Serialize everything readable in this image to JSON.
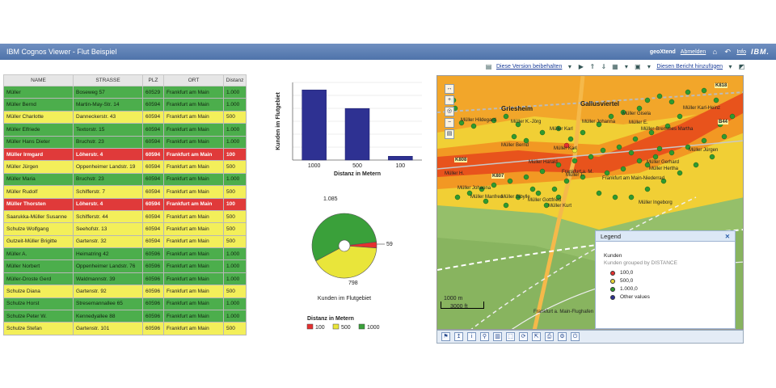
{
  "app": {
    "title": "IBM Cognos Viewer - Flut Beispiel",
    "user": "geoXtend",
    "logout": "Abmelden",
    "info": "Info",
    "brand": "IBM."
  },
  "toolbar": {
    "keep_version": "Diese Version beibehalten",
    "add_report": "Diesen Bericht hinzufügen"
  },
  "table": {
    "headers": [
      "NAME",
      "STRASSE",
      "PLZ",
      "ORT",
      "Distanz"
    ],
    "rows": [
      {
        "name": "Müller",
        "street": "Boseweg 57",
        "plz": "60529",
        "ort": "Frankfurt am Main",
        "dist": "1.000",
        "cls": "g"
      },
      {
        "name": "Müller Bernd",
        "street": "Martin-May-Str. 14",
        "plz": "60594",
        "ort": "Frankfurt am Main",
        "dist": "1.000",
        "cls": "g"
      },
      {
        "name": "Müller Charlotte",
        "street": "Danneckerstr. 43",
        "plz": "60594",
        "ort": "Frankfurt am Main",
        "dist": "500",
        "cls": "y"
      },
      {
        "name": "Müller Elfriede",
        "street": "Textorstr. 15",
        "plz": "60594",
        "ort": "Frankfurt am Main",
        "dist": "1.000",
        "cls": "g"
      },
      {
        "name": "Müller Hans Dieter",
        "street": "Bruchstr. 23",
        "plz": "60594",
        "ort": "Frankfurt am Main",
        "dist": "1.000",
        "cls": "g"
      },
      {
        "name": "Müller Irmgard",
        "street": "Löherstr. 4",
        "plz": "60594",
        "ort": "Frankfurt am Main",
        "dist": "100",
        "cls": "r"
      },
      {
        "name": "Müller Jürgen",
        "street": "Oppenheimer Landstr. 19",
        "plz": "60594",
        "ort": "Frankfurt am Main",
        "dist": "500",
        "cls": "y"
      },
      {
        "name": "Müller Maria",
        "street": "Bruchstr. 23",
        "plz": "60594",
        "ort": "Frankfurt am Main",
        "dist": "1.000",
        "cls": "g"
      },
      {
        "name": "Müller Rudolf",
        "street": "Schifferstr. 7",
        "plz": "60594",
        "ort": "Frankfurt am Main",
        "dist": "500",
        "cls": "y"
      },
      {
        "name": "Müller Thorsten",
        "street": "Löherstr. 4",
        "plz": "60594",
        "ort": "Frankfurt am Main",
        "dist": "100",
        "cls": "r"
      },
      {
        "name": "Saarukka-Müller Susanne",
        "street": "Schifferstr. 44",
        "plz": "60594",
        "ort": "Frankfurt am Main",
        "dist": "500",
        "cls": "y"
      },
      {
        "name": "Schulze Wolfgang",
        "street": "Seehofstr. 13",
        "plz": "60594",
        "ort": "Frankfurt am Main",
        "dist": "500",
        "cls": "y"
      },
      {
        "name": "Gutzeit-Müller Brigitte",
        "street": "Gartenstr. 32",
        "plz": "60594",
        "ort": "Frankfurt am Main",
        "dist": "500",
        "cls": "y"
      },
      {
        "name": "Müller A.",
        "street": "Heimatring 42",
        "plz": "60596",
        "ort": "Frankfurt am Main",
        "dist": "1.000",
        "cls": "g"
      },
      {
        "name": "Müller Norbert",
        "street": "Oppenheimer Landstr. 76",
        "plz": "60596",
        "ort": "Frankfurt am Main",
        "dist": "1.000",
        "cls": "g"
      },
      {
        "name": "Müller-Droste Gerd",
        "street": "Waldmannstr. 39",
        "plz": "60596",
        "ort": "Frankfurt am Main",
        "dist": "1.000",
        "cls": "g"
      },
      {
        "name": "Schulze Diana",
        "street": "Gartenstr. 92",
        "plz": "60596",
        "ort": "Frankfurt am Main",
        "dist": "500",
        "cls": "y"
      },
      {
        "name": "Schulze Horst",
        "street": "Stresemannallee 65",
        "plz": "60596",
        "ort": "Frankfurt am Main",
        "dist": "1.000",
        "cls": "g"
      },
      {
        "name": "Schulze Peter W.",
        "street": "Kennedyallee 88",
        "plz": "60596",
        "ort": "Frankfurt am Main",
        "dist": "1.000",
        "cls": "g"
      },
      {
        "name": "Schulze Stefan",
        "street": "Gartenstr. 101",
        "plz": "60596",
        "ort": "Frankfurt am Main",
        "dist": "500",
        "cls": "y"
      }
    ]
  },
  "chart_data": [
    {
      "type": "bar",
      "categories": [
        "1000",
        "500",
        "100"
      ],
      "values": [
        1085,
        798,
        59
      ],
      "xlabel": "Distanz in Metern",
      "ylabel": "Kunden im Flutgebiet",
      "ylim": [
        0,
        1200
      ],
      "color": "#2e3192",
      "grid": true
    },
    {
      "type": "pie",
      "title": "Kunden im Flutgebiet",
      "legend_title": "Distanz in Metern",
      "slices": [
        {
          "label": "100",
          "value": 59,
          "color": "#e53030"
        },
        {
          "label": "500",
          "value": 798,
          "color": "#e9e53a"
        },
        {
          "label": "1000",
          "value": 1085,
          "color": "#3aa03a"
        }
      ],
      "data_labels": [
        "1.085",
        "59",
        "798"
      ]
    }
  ],
  "map": {
    "labels": [
      "Griesheim",
      "Gallusviertel",
      "Müller Hildegard",
      "Müller K.-Jörg",
      "Müller Johanna",
      "Müller Karl",
      "Müller Karl-Heinz",
      "Müller Gisela",
      "Müller E.",
      "Müller-Bremmes Martha",
      "Müller Jürgen",
      "Müller Bernd",
      "Müller Karl",
      "Müller Harald",
      "Frankfurt a. M.",
      "Müller H.",
      "Müller T.",
      "Müller Johanna",
      "Müller Manfred",
      "Müller Sibylle",
      "Müller Gottfried",
      "Müller Ingeborg",
      "Müller Kurt",
      "Müller Hertha",
      "Müller Gerhard",
      "Frankfurt a. Main-Flughafen",
      "Frankfurt am Main-Niederrad"
    ],
    "roads": [
      "K818",
      "B44",
      "K808",
      "K807"
    ],
    "scale_m": "1000 m",
    "scale_ft": "3000 ft"
  },
  "legend": {
    "title": "Legend",
    "group": "Kunden",
    "subtitle": "Kunden grouped by DISTANCE",
    "items": [
      {
        "label": "100,0",
        "color": "#e53030"
      },
      {
        "label": "500,0",
        "color": "#e9d83a"
      },
      {
        "label": "1.000,0",
        "color": "#2f9a2f"
      },
      {
        "label": "Other values",
        "color": "#2e3192"
      }
    ]
  }
}
